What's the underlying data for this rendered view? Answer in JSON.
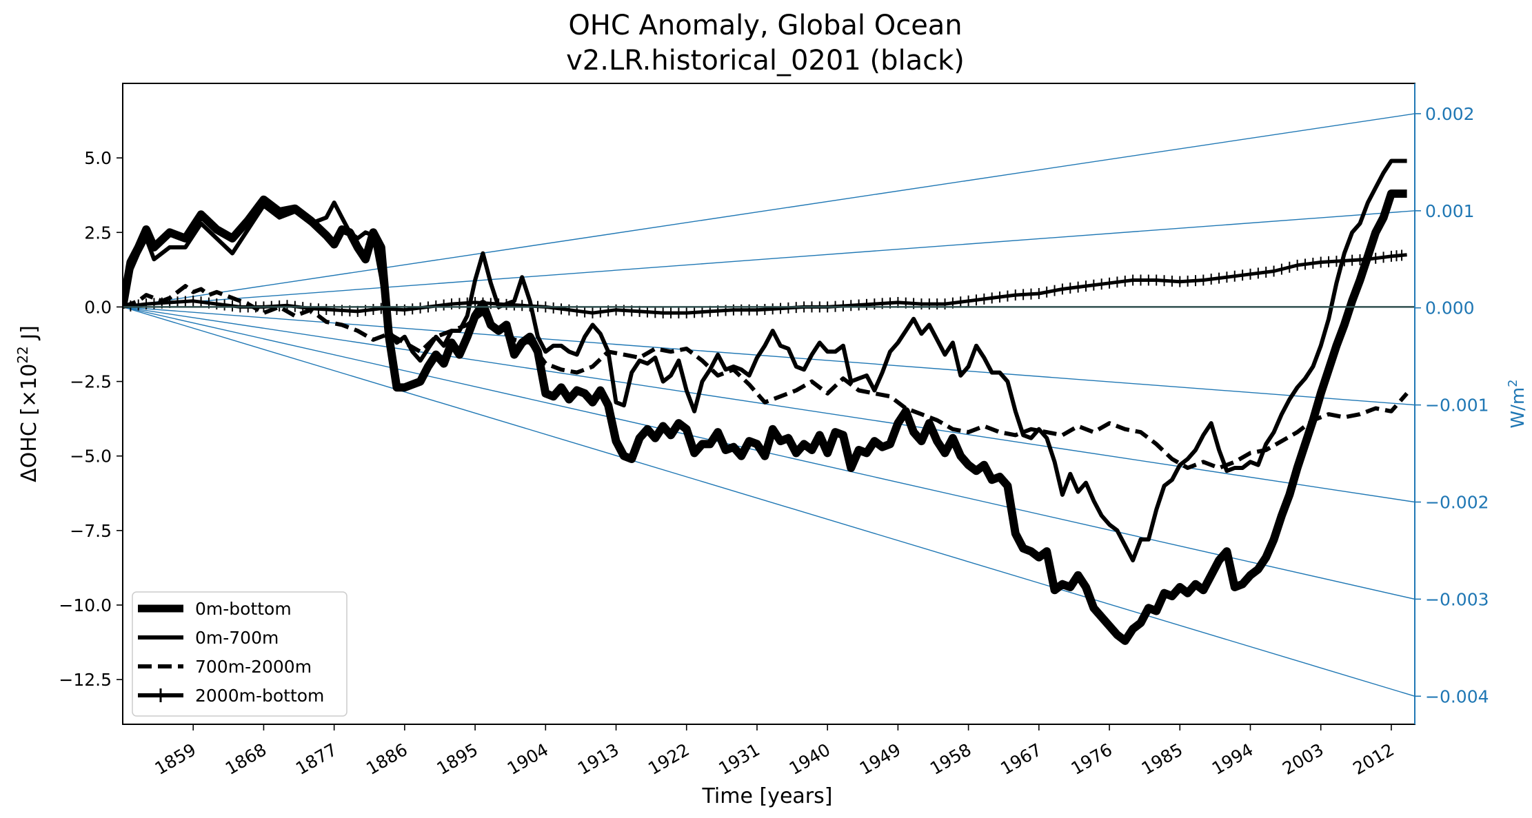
{
  "chart_data": {
    "type": "line",
    "title_line1": "OHC Anomaly, Global Ocean",
    "title_line2": "v2.LR.historical_0201 (black)",
    "xlabel": "Time [years]",
    "ylabel": "ΔOHC [×10²² J]",
    "ylabel_main": "ΔOHC [×10",
    "ylabel_exp": "22",
    "ylabel_tail": " J]",
    "y2label": "W/m²",
    "y2label_main": "W/m",
    "y2label_exp": "2",
    "xlim": [
      1850,
      2015
    ],
    "ylim": [
      -14.0,
      7.5
    ],
    "y2lim": [
      -0.004289,
      0.002312
    ],
    "xticks": [
      1859,
      1868,
      1877,
      1886,
      1895,
      1904,
      1913,
      1922,
      1931,
      1940,
      1949,
      1958,
      1967,
      1976,
      1985,
      1994,
      2003,
      2012
    ],
    "yticks": [
      5.0,
      2.5,
      0.0,
      -2.5,
      -5.0,
      -7.5,
      -10.0,
      -12.5
    ],
    "ytick_labels": [
      "5.0",
      "2.5",
      "0.0",
      "−2.5",
      "−5.0",
      "−7.5",
      "−10.0",
      "−12.5"
    ],
    "y2ticks": [
      0.002,
      0.001,
      0.0,
      -0.001,
      -0.002,
      -0.003,
      -0.004
    ],
    "y2tick_labels": [
      "0.002",
      "0.001",
      "0.000",
      "−0.001",
      "−0.002",
      "−0.003",
      "−0.004"
    ],
    "reference_lines_wm2": [
      0.002,
      0.001,
      -0.001,
      -0.002,
      -0.003,
      -0.004
    ],
    "reference_color": "#1f77b4",
    "series_color": "#000000",
    "legend_position": "lower-left",
    "series": [
      {
        "name": "0m-bottom",
        "style": "thick",
        "x": [
          1850,
          1851,
          1852,
          1853,
          1854,
          1856,
          1858,
          1860,
          1862,
          1864,
          1866,
          1868,
          1870,
          1872,
          1874,
          1876,
          1877,
          1878,
          1879,
          1880,
          1881,
          1882,
          1883,
          1884,
          1885,
          1886,
          1887,
          1888,
          1889,
          1890,
          1891,
          1892,
          1893,
          1894,
          1895,
          1896,
          1897,
          1898,
          1899,
          1900,
          1901,
          1902,
          1903,
          1904,
          1905,
          1906,
          1907,
          1908,
          1909,
          1910,
          1911,
          1912,
          1913,
          1914,
          1915,
          1916,
          1917,
          1918,
          1919,
          1920,
          1921,
          1922,
          1923,
          1924,
          1925,
          1926,
          1927,
          1928,
          1929,
          1930,
          1931,
          1932,
          1933,
          1934,
          1935,
          1936,
          1937,
          1938,
          1939,
          1940,
          1941,
          1942,
          1943,
          1944,
          1945,
          1946,
          1947,
          1948,
          1949,
          1950,
          1951,
          1952,
          1953,
          1954,
          1955,
          1956,
          1957,
          1958,
          1959,
          1960,
          1961,
          1962,
          1963,
          1964,
          1965,
          1966,
          1967,
          1968,
          1969,
          1970,
          1971,
          1972,
          1973,
          1974,
          1975,
          1976,
          1977,
          1978,
          1979,
          1980,
          1981,
          1982,
          1983,
          1984,
          1985,
          1986,
          1987,
          1988,
          1989,
          1990,
          1991,
          1992,
          1993,
          1994,
          1995,
          1996,
          1997,
          1998,
          1999,
          2000,
          2001,
          2002,
          2003,
          2004,
          2005,
          2006,
          2007,
          2008,
          2009,
          2010,
          2011,
          2012,
          2013,
          2014
        ],
        "values": [
          0.0,
          1.5,
          2.0,
          2.6,
          2.0,
          2.5,
          2.3,
          3.1,
          2.6,
          2.3,
          2.9,
          3.6,
          3.2,
          3.3,
          2.9,
          2.4,
          2.1,
          2.6,
          2.5,
          2.0,
          1.6,
          2.5,
          2.0,
          -1.0,
          -2.7,
          -2.7,
          -2.6,
          -2.5,
          -2.0,
          -1.6,
          -1.9,
          -1.2,
          -1.6,
          -1.0,
          -0.3,
          0.1,
          -0.6,
          -0.8,
          -0.6,
          -1.6,
          -1.2,
          -1.0,
          -1.5,
          -2.9,
          -3.0,
          -2.7,
          -3.1,
          -2.8,
          -2.9,
          -3.2,
          -2.8,
          -3.3,
          -4.5,
          -5.0,
          -5.1,
          -4.4,
          -4.1,
          -4.4,
          -4.0,
          -4.3,
          -3.9,
          -4.1,
          -4.9,
          -4.6,
          -4.6,
          -4.2,
          -4.8,
          -4.7,
          -5.0,
          -4.5,
          -4.6,
          -5.0,
          -4.1,
          -4.5,
          -4.4,
          -4.9,
          -4.6,
          -4.8,
          -4.3,
          -4.9,
          -4.2,
          -4.3,
          -5.4,
          -4.8,
          -4.9,
          -4.5,
          -4.7,
          -4.6,
          -3.9,
          -3.5,
          -4.2,
          -4.5,
          -3.9,
          -4.5,
          -4.9,
          -4.4,
          -5.0,
          -5.3,
          -5.5,
          -5.3,
          -5.8,
          -5.7,
          -6.0,
          -7.6,
          -8.1,
          -8.2,
          -8.4,
          -8.2,
          -9.5,
          -9.3,
          -9.4,
          -9.0,
          -9.4,
          -10.1,
          -10.4,
          -10.7,
          -11.0,
          -11.2,
          -10.8,
          -10.6,
          -10.1,
          -10.2,
          -9.6,
          -9.7,
          -9.4,
          -9.6,
          -9.3,
          -9.5,
          -9.0,
          -8.5,
          -8.2,
          -9.4,
          -9.3,
          -9.0,
          -8.8,
          -8.4,
          -7.8,
          -7.0,
          -6.3,
          -5.4,
          -4.6,
          -3.8,
          -2.9,
          -2.1,
          -1.3,
          -0.6,
          0.2,
          0.9,
          1.7,
          2.5,
          3.0,
          3.8,
          3.8,
          3.8
        ]
      },
      {
        "name": "0m-700m",
        "style": "solid",
        "x": [
          1850,
          1851,
          1852,
          1853,
          1854,
          1856,
          1858,
          1860,
          1862,
          1864,
          1866,
          1868,
          1870,
          1872,
          1874,
          1876,
          1877,
          1878,
          1879,
          1880,
          1881,
          1882,
          1883,
          1884,
          1885,
          1886,
          1887,
          1888,
          1889,
          1890,
          1891,
          1892,
          1893,
          1894,
          1895,
          1896,
          1897,
          1898,
          1899,
          1900,
          1901,
          1902,
          1903,
          1904,
          1905,
          1906,
          1907,
          1908,
          1909,
          1910,
          1911,
          1912,
          1913,
          1914,
          1915,
          1916,
          1917,
          1918,
          1919,
          1920,
          1921,
          1922,
          1923,
          1924,
          1925,
          1926,
          1927,
          1928,
          1929,
          1930,
          1931,
          1932,
          1933,
          1934,
          1935,
          1936,
          1937,
          1938,
          1939,
          1940,
          1941,
          1942,
          1943,
          1944,
          1945,
          1946,
          1947,
          1948,
          1949,
          1950,
          1951,
          1952,
          1953,
          1954,
          1955,
          1956,
          1957,
          1958,
          1959,
          1960,
          1961,
          1962,
          1963,
          1964,
          1965,
          1966,
          1967,
          1968,
          1969,
          1970,
          1971,
          1972,
          1973,
          1974,
          1975,
          1976,
          1977,
          1978,
          1979,
          1980,
          1981,
          1982,
          1983,
          1984,
          1985,
          1986,
          1987,
          1988,
          1989,
          1990,
          1991,
          1992,
          1993,
          1994,
          1995,
          1996,
          1997,
          1998,
          1999,
          2000,
          2001,
          2002,
          2003,
          2004,
          2005,
          2006,
          2007,
          2008,
          2009,
          2010,
          2011,
          2012,
          2013,
          2014
        ],
        "values": [
          0.0,
          1.2,
          1.8,
          2.3,
          1.6,
          2.0,
          2.0,
          2.8,
          2.3,
          1.8,
          2.6,
          3.4,
          3.0,
          3.2,
          2.8,
          3.0,
          3.5,
          3.0,
          2.5,
          2.3,
          2.5,
          2.4,
          1.0,
          -0.8,
          -1.2,
          -1.0,
          -1.5,
          -1.8,
          -1.4,
          -1.0,
          -1.3,
          -0.8,
          -0.8,
          -0.3,
          0.9,
          1.8,
          0.8,
          0.0,
          0.1,
          0.2,
          1.0,
          0.2,
          -1.0,
          -1.5,
          -1.3,
          -1.3,
          -1.5,
          -1.6,
          -1.0,
          -0.6,
          -0.9,
          -1.5,
          -3.2,
          -3.3,
          -2.2,
          -1.8,
          -1.9,
          -1.7,
          -2.5,
          -2.3,
          -1.8,
          -2.8,
          -3.5,
          -2.5,
          -2.1,
          -1.6,
          -2.1,
          -2.0,
          -2.1,
          -2.3,
          -1.7,
          -1.3,
          -0.8,
          -1.3,
          -1.4,
          -2.0,
          -2.1,
          -1.6,
          -1.2,
          -1.5,
          -1.5,
          -1.3,
          -2.5,
          -2.4,
          -2.3,
          -2.8,
          -2.2,
          -1.5,
          -1.2,
          -0.8,
          -0.4,
          -0.9,
          -0.6,
          -1.1,
          -1.6,
          -1.2,
          -2.3,
          -2.0,
          -1.3,
          -1.7,
          -2.2,
          -2.2,
          -2.5,
          -3.5,
          -4.3,
          -4.4,
          -4.1,
          -4.4,
          -5.2,
          -6.3,
          -5.6,
          -6.2,
          -5.9,
          -6.5,
          -7.0,
          -7.3,
          -7.5,
          -8.0,
          -8.5,
          -7.8,
          -7.8,
          -6.8,
          -6.0,
          -5.8,
          -5.3,
          -5.1,
          -4.8,
          -4.3,
          -3.9,
          -4.8,
          -5.5,
          -5.4,
          -5.4,
          -5.2,
          -5.3,
          -4.6,
          -4.2,
          -3.6,
          -3.1,
          -2.7,
          -2.4,
          -2.0,
          -1.3,
          -0.4,
          0.8,
          1.8,
          2.5,
          2.8,
          3.5,
          4.0,
          4.5,
          4.9,
          4.9,
          4.9
        ]
      },
      {
        "name": "700m-2000m",
        "style": "dashed",
        "x": [
          1850,
          1851,
          1852,
          1853,
          1854,
          1855,
          1856,
          1857,
          1858,
          1859,
          1860,
          1861,
          1862,
          1864,
          1866,
          1868,
          1870,
          1872,
          1874,
          1876,
          1878,
          1880,
          1882,
          1884,
          1886,
          1888,
          1890,
          1892,
          1894,
          1895,
          1896,
          1897,
          1898,
          1899,
          1900,
          1902,
          1904,
          1906,
          1908,
          1910,
          1912,
          1914,
          1916,
          1918,
          1920,
          1922,
          1924,
          1926,
          1928,
          1930,
          1932,
          1934,
          1936,
          1938,
          1940,
          1942,
          1944,
          1946,
          1948,
          1950,
          1952,
          1954,
          1956,
          1958,
          1960,
          1962,
          1964,
          1966,
          1968,
          1970,
          1972,
          1974,
          1976,
          1978,
          1980,
          1982,
          1984,
          1986,
          1988,
          1990,
          1992,
          1994,
          1996,
          1998,
          2000,
          2002,
          2004,
          2006,
          2008,
          2010,
          2012,
          2014
        ],
        "values": [
          0.0,
          0.1,
          0.2,
          0.4,
          0.3,
          0.2,
          0.3,
          0.5,
          0.7,
          0.5,
          0.6,
          0.4,
          0.5,
          0.3,
          0.1,
          -0.2,
          0.0,
          -0.3,
          -0.1,
          -0.5,
          -0.6,
          -0.8,
          -1.1,
          -0.9,
          -1.2,
          -1.5,
          -1.0,
          -0.8,
          -0.6,
          -0.4,
          -0.2,
          -0.6,
          -0.8,
          -0.9,
          -1.1,
          -1.2,
          -1.9,
          -2.1,
          -2.2,
          -2.0,
          -1.5,
          -1.6,
          -1.7,
          -1.4,
          -1.5,
          -1.4,
          -1.8,
          -2.3,
          -2.1,
          -2.6,
          -3.2,
          -3.0,
          -2.8,
          -2.5,
          -2.9,
          -2.4,
          -2.8,
          -2.9,
          -3.0,
          -3.4,
          -3.6,
          -3.8,
          -4.1,
          -4.2,
          -4.0,
          -4.2,
          -4.3,
          -4.1,
          -4.2,
          -4.3,
          -4.0,
          -4.2,
          -3.9,
          -4.1,
          -4.2,
          -4.6,
          -5.1,
          -5.4,
          -5.2,
          -5.4,
          -5.2,
          -4.9,
          -4.8,
          -4.5,
          -4.2,
          -3.8,
          -3.6,
          -3.7,
          -3.6,
          -3.4,
          -3.5,
          -2.9
        ]
      },
      {
        "name": "2000m-bottom",
        "style": "plus",
        "x": [
          1850,
          1853,
          1856,
          1859,
          1862,
          1865,
          1868,
          1871,
          1874,
          1877,
          1880,
          1883,
          1886,
          1889,
          1892,
          1895,
          1898,
          1901,
          1904,
          1907,
          1910,
          1913,
          1916,
          1919,
          1922,
          1925,
          1928,
          1931,
          1934,
          1937,
          1940,
          1943,
          1946,
          1949,
          1952,
          1955,
          1958,
          1961,
          1964,
          1967,
          1970,
          1973,
          1976,
          1979,
          1982,
          1985,
          1988,
          1991,
          1994,
          1997,
          2000,
          2003,
          2006,
          2009,
          2012,
          2014
        ],
        "values": [
          0.0,
          0.1,
          0.15,
          0.2,
          0.1,
          0.0,
          0.0,
          0.05,
          -0.05,
          -0.1,
          -0.15,
          -0.05,
          -0.1,
          0.0,
          0.1,
          0.15,
          0.1,
          0.05,
          0.0,
          -0.1,
          -0.2,
          -0.1,
          -0.15,
          -0.2,
          -0.2,
          -0.15,
          -0.1,
          -0.1,
          -0.05,
          0.0,
          0.0,
          0.05,
          0.1,
          0.15,
          0.1,
          0.1,
          0.2,
          0.3,
          0.4,
          0.45,
          0.6,
          0.7,
          0.8,
          0.9,
          0.9,
          0.85,
          0.9,
          1.0,
          1.1,
          1.2,
          1.4,
          1.5,
          1.55,
          1.6,
          1.7,
          1.75
        ]
      }
    ]
  }
}
